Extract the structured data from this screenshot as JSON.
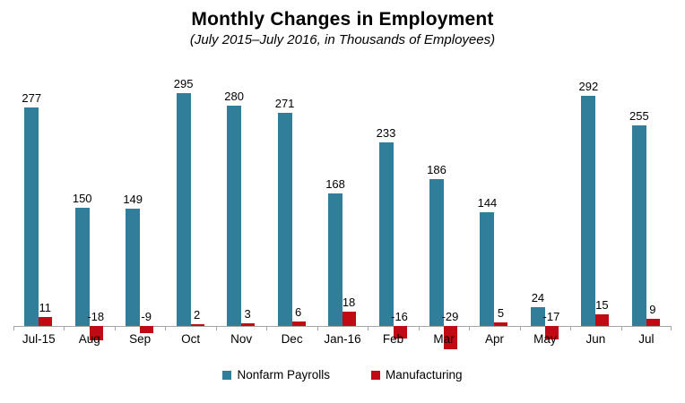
{
  "header": {
    "title": "Monthly Changes in Employment",
    "subtitle": "(July 2015–July 2016, in Thousands of Employees)"
  },
  "chart_data": {
    "type": "bar",
    "title": "Monthly Changes in Employment",
    "subtitle": "(July 2015–July 2016, in Thousands of Employees)",
    "categories": [
      "Jul-15",
      "Aug",
      "Sep",
      "Oct",
      "Nov",
      "Dec",
      "Jan-16",
      "Feb",
      "Mar",
      "Apr",
      "May",
      "Jun",
      "Jul"
    ],
    "series": [
      {
        "name": "Nonfarm Payrolls",
        "color": "#317e9b",
        "values": [
          277,
          150,
          149,
          295,
          280,
          271,
          168,
          233,
          186,
          144,
          24,
          292,
          255
        ]
      },
      {
        "name": "Manufacturing",
        "color": "#c00b15",
        "values": [
          11,
          -18,
          -9,
          2,
          3,
          6,
          18,
          -16,
          -29,
          5,
          -17,
          15,
          9
        ]
      }
    ],
    "xlabel": "",
    "ylabel": "",
    "ylim": [
      -40,
      300
    ],
    "grid": false,
    "data_labels": true,
    "legend_position": "bottom",
    "axis_color": "#a6a6a6",
    "text_color": "#000000"
  }
}
